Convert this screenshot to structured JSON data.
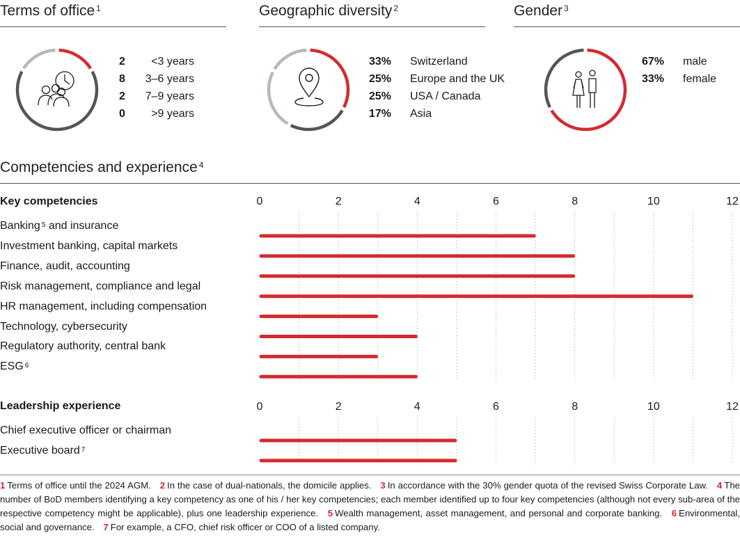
{
  "colors": {
    "red": "#d42a2f",
    "dark": "#555555",
    "light": "#b9b9b3",
    "grid": "#b5b5b5",
    "text": "#1a1a1a"
  },
  "terms": {
    "title": "Terms of office",
    "note": "1",
    "icon": "board-members-clock-icon",
    "rows": [
      {
        "value": "2",
        "label": "<3 years"
      },
      {
        "value": "8",
        "label": "3–6 years"
      },
      {
        "value": "2",
        "label": "7–9 years"
      },
      {
        "value": "0",
        "label": ">9 years"
      }
    ]
  },
  "geo": {
    "title": "Geographic diversity",
    "note": "2",
    "icon": "location-pin-icon",
    "rows": [
      {
        "value": "33%",
        "label": "Switzerland"
      },
      {
        "value": "25%",
        "label": "Europe and the UK"
      },
      {
        "value": "25%",
        "label": "USA / Canada"
      },
      {
        "value": "17%",
        "label": "Asia"
      }
    ]
  },
  "gender": {
    "title": "Gender",
    "note": "3",
    "icon": "woman-man-icon",
    "rows": [
      {
        "value": "67%",
        "label": "male"
      },
      {
        "value": "33%",
        "label": "female"
      }
    ]
  },
  "competencies": {
    "title": "Competencies and experience",
    "note": "4"
  },
  "chart_data": [
    {
      "type": "pie",
      "title": "Terms of office",
      "categories": [
        "<3 years",
        "3–6 years",
        "7–9 years",
        ">9 years"
      ],
      "values": [
        2,
        8,
        2,
        0
      ]
    },
    {
      "type": "pie",
      "title": "Geographic diversity",
      "categories": [
        "Switzerland",
        "Europe and the UK",
        "USA / Canada",
        "Asia"
      ],
      "values": [
        33,
        25,
        25,
        17
      ]
    },
    {
      "type": "pie",
      "title": "Gender",
      "categories": [
        "male",
        "female"
      ],
      "values": [
        67,
        33
      ]
    },
    {
      "type": "bar",
      "orientation": "horizontal",
      "title": "Key competencies",
      "categories": [
        "Banking",
        "Investment banking, capital markets",
        "Finance, audit, accounting",
        "Risk management, compliance and legal",
        "HR management, including compensation",
        "Technology, cybersecurity",
        "Regulatory authority, central bank",
        "ESG"
      ],
      "notes": [
        "5",
        "",
        "",
        "",
        "",
        "",
        "",
        "6"
      ],
      "suffixes": [
        " and insurance",
        "",
        "",
        "",
        "",
        "",
        "",
        ""
      ],
      "values": [
        7,
        8,
        8,
        11,
        3,
        4,
        3,
        4
      ],
      "xlim": [
        0,
        12
      ],
      "xticks": [
        "0",
        "2",
        "4",
        "6",
        "8",
        "10",
        "12"
      ],
      "grid": true
    },
    {
      "type": "bar",
      "orientation": "horizontal",
      "title": "Leadership experience",
      "categories": [
        "Chief executive officer or chairman",
        "Executive board"
      ],
      "notes": [
        "",
        "7"
      ],
      "suffixes": [
        "",
        ""
      ],
      "values": [
        5,
        5
      ],
      "xlim": [
        0,
        12
      ],
      "xticks": [
        "0",
        "2",
        "4",
        "6",
        "8",
        "10",
        "12"
      ],
      "grid": true
    }
  ],
  "footnotes": [
    {
      "num": "1",
      "text": "Terms of office until the 2024 AGM."
    },
    {
      "num": "2",
      "text": "In the case of dual-nationals, the domicile applies."
    },
    {
      "num": "3",
      "text": "In accordance with the 30% gender quota of the revised Swiss Corporate Law."
    },
    {
      "num": "4",
      "text": "The number of BoD members identifying a key competency as one of his / her key competencies; each member identified up to four key competencies (although not every sub-area of the respective competency might be applicable), plus one leadership experience."
    },
    {
      "num": "5",
      "text": "Wealth management, asset management, and personal and corporate banking."
    },
    {
      "num": "6",
      "text": "Environmental, social and governance."
    },
    {
      "num": "7",
      "text": "For example, a CFO, chief risk officer or COO of a listed company."
    }
  ]
}
